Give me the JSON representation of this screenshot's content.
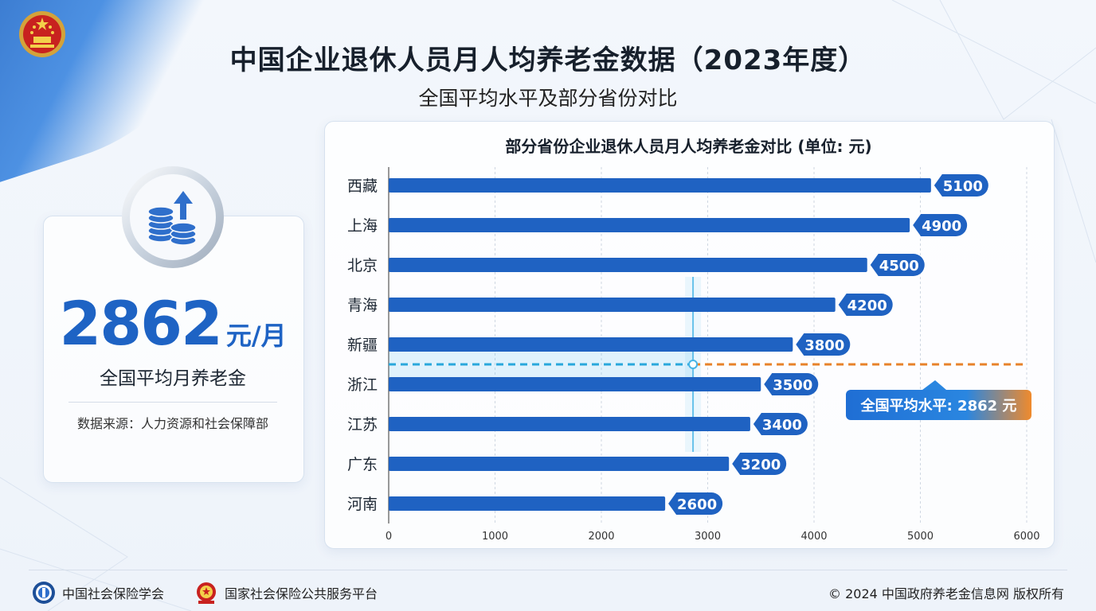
{
  "header": {
    "title": "中国企业退休人员月人均养老金数据（2023年度）",
    "subtitle": "全国平均水平及部分省份对比"
  },
  "stat_card": {
    "value": "2862",
    "unit": "元/月",
    "label": "全国平均月养老金",
    "source": "数据来源：人力资源和社会保障部"
  },
  "chart_data": {
    "type": "bar",
    "orientation": "horizontal",
    "title": "部分省份企业退休人员月人均养老金对比 (单位: 元)",
    "categories": [
      "西藏",
      "上海",
      "北京",
      "青海",
      "新疆",
      "浙江",
      "江苏",
      "广东",
      "河南"
    ],
    "values": [
      5100,
      4900,
      4500,
      4200,
      3800,
      3500,
      3400,
      3200,
      2600
    ],
    "xlim": [
      0,
      6000
    ],
    "xticks": [
      0,
      1000,
      2000,
      3000,
      4000,
      5000,
      6000
    ],
    "grid": true,
    "bar_color": "#1f62c2",
    "reference_line": {
      "value": 2862,
      "label": "全国平均水平: 2862 元",
      "color_left": "#29a8dc",
      "color_right": "#e8822a"
    }
  },
  "footer": {
    "org1": "中国社会保险学会",
    "org2": "国家社会保险公共服务平台",
    "copyright": "© 2024 中国政府养老金信息网 版权所有"
  },
  "icons": [
    "national-emblem-icon",
    "coin-stack-icon",
    "arrow-up-icon",
    "society-logo-icon",
    "platform-emblem-icon"
  ],
  "colors": {
    "accent": "#1e63c4",
    "reference_orange": "#e8822a",
    "reference_cyan": "#29a8dc"
  }
}
